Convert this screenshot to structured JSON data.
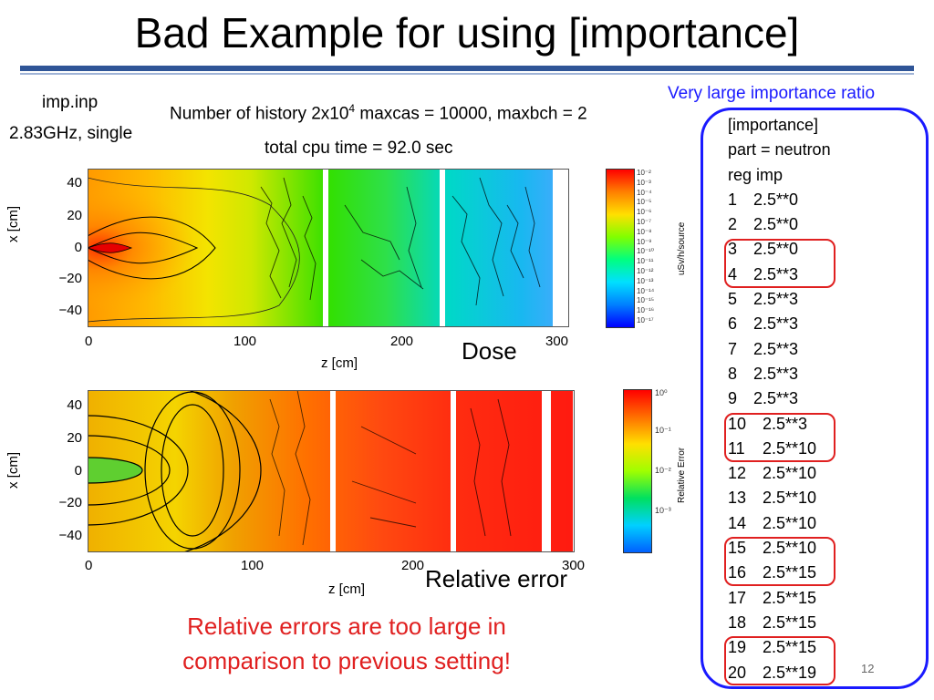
{
  "slide": {
    "title": "Bad Example for using [importance]",
    "input_file": "imp.inp",
    "cpu_spec": "2.83GHz, single",
    "history_prefix": "Number of history  2x10",
    "history_exp": "4",
    "history_suffix": "  maxcas = 10000, maxbch = 2",
    "cpu_time": "total cpu time =  92.0 sec",
    "page_number": "12"
  },
  "dose_plot": {
    "caption": "Dose",
    "xlabel": "z [cm]",
    "ylabel": "x [cm]",
    "xticks": [
      "0",
      "100",
      "200",
      "300"
    ],
    "yticks": [
      "40",
      "20",
      "0",
      "−20",
      "−40"
    ],
    "colorbar_label": "uSv/h/source",
    "colorbar_ticks": [
      "10⁻²",
      "10⁻³",
      "10⁻⁴",
      "10⁻⁵",
      "10⁻⁶",
      "10⁻⁷",
      "10⁻⁸",
      "10⁻⁹",
      "10⁻¹⁰",
      "10⁻¹¹",
      "10⁻¹²",
      "10⁻¹³",
      "10⁻¹⁴",
      "10⁻¹⁵",
      "10⁻¹⁶",
      "10⁻¹⁷"
    ]
  },
  "error_plot": {
    "caption": "Relative error",
    "xlabel": "z [cm]",
    "ylabel": "x [cm]",
    "xticks": [
      "0",
      "100",
      "200",
      "300"
    ],
    "yticks": [
      "40",
      "20",
      "0",
      "−20",
      "−40"
    ],
    "colorbar_label": "Relative Error",
    "colorbar_ticks": [
      "10⁰",
      "10⁻¹",
      "10⁻²",
      "10⁻³"
    ]
  },
  "importance_panel": {
    "label": "Very large importance ratio",
    "header": [
      "[importance]",
      "part = neutron",
      "reg imp"
    ],
    "rows": [
      {
        "reg": "1",
        "imp": "2.5**0"
      },
      {
        "reg": "2",
        "imp": "2.5**0"
      },
      {
        "reg": "3",
        "imp": "2.5**0"
      },
      {
        "reg": "4",
        "imp": "2.5**3"
      },
      {
        "reg": "5",
        "imp": "2.5**3"
      },
      {
        "reg": "6",
        "imp": "2.5**3"
      },
      {
        "reg": "7",
        "imp": "2.5**3"
      },
      {
        "reg": "8",
        "imp": "2.5**3"
      },
      {
        "reg": "9",
        "imp": "2.5**3"
      },
      {
        "reg": "10",
        "imp": "2.5**3"
      },
      {
        "reg": "11",
        "imp": "2.5**10"
      },
      {
        "reg": "12",
        "imp": "2.5**10"
      },
      {
        "reg": "13",
        "imp": "2.5**10"
      },
      {
        "reg": "14",
        "imp": "2.5**10"
      },
      {
        "reg": "15",
        "imp": "2.5**10"
      },
      {
        "reg": "16",
        "imp": "2.5**15"
      },
      {
        "reg": "17",
        "imp": "2.5**15"
      },
      {
        "reg": "18",
        "imp": "2.5**15"
      },
      {
        "reg": "19",
        "imp": "2.5**15"
      },
      {
        "reg": "20",
        "imp": "2.5**19"
      }
    ],
    "highlight_color": "#e02020",
    "box_color": "#1a1aff"
  },
  "warning": {
    "line1": "Relative errors are too large in",
    "line2": "comparison to previous setting!",
    "color": "#e02020"
  }
}
